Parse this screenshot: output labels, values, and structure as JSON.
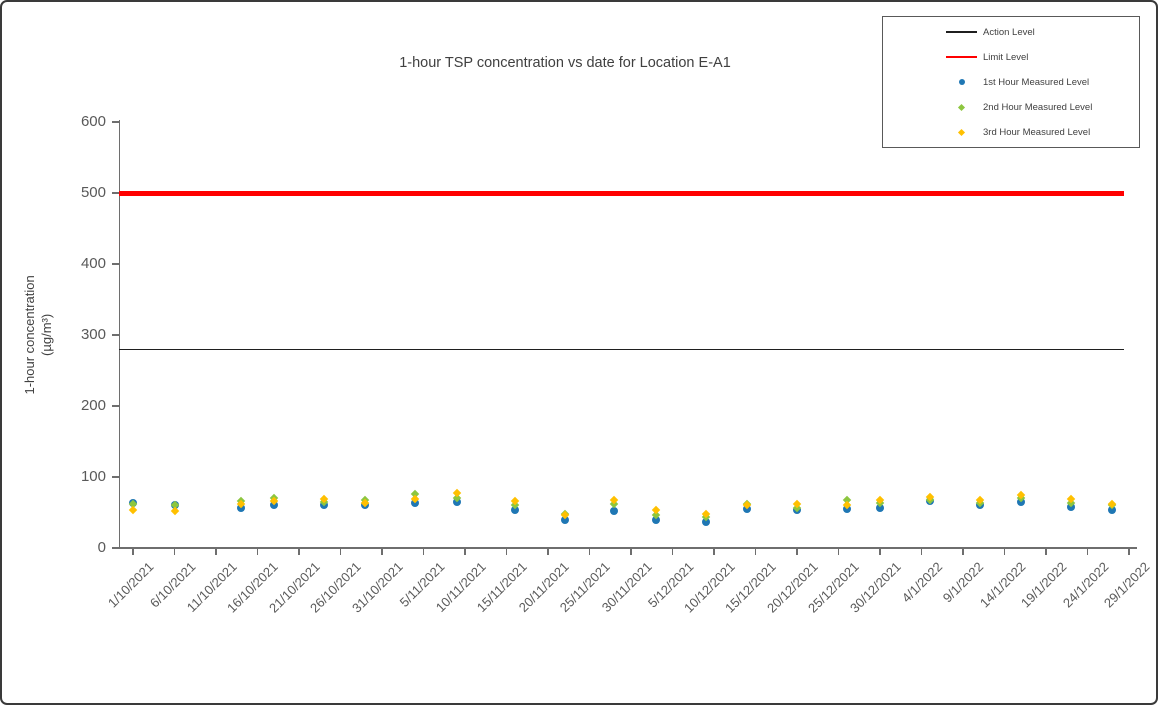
{
  "chart_data": {
    "type": "scatter",
    "title": "1-hour TSP concentration vs date for Location E-A1",
    "ylabel": "1-hour concentration (µg/m³)",
    "ylabel_line1": "1-hour concentration",
    "ylabel_line2": "(µg/m³)",
    "ylim": [
      0,
      600
    ],
    "grid": false,
    "legend_position": "top-right",
    "yticks": [
      0,
      100,
      200,
      300,
      400,
      500,
      600
    ],
    "x_tick_labels": [
      "1/10/2021",
      "6/10/2021",
      "11/10/2021",
      "16/10/2021",
      "21/10/2021",
      "26/10/2021",
      "31/10/2021",
      "5/11/2021",
      "10/11/2021",
      "15/11/2021",
      "20/11/2021",
      "25/11/2021",
      "30/11/2021",
      "5/12/2021",
      "10/12/2021",
      "15/12/2021",
      "20/12/2021",
      "25/12/2021",
      "30/12/2021",
      "4/1/2022",
      "9/1/2022",
      "14/1/2022",
      "19/1/2022",
      "24/1/2022",
      "29/1/2022"
    ],
    "x_tick_days": [
      0,
      5,
      10,
      15,
      20,
      25,
      30,
      35,
      40,
      45,
      50,
      55,
      60,
      65,
      70,
      75,
      80,
      85,
      90,
      95,
      100,
      105,
      110,
      115,
      120
    ],
    "reference_lines": [
      {
        "name": "Action Level",
        "slug": "action-level",
        "value": 280,
        "color": "#1f1f1f",
        "width": 1.2
      },
      {
        "name": "Limit Level",
        "slug": "limit-level",
        "value": 500,
        "color": "#ff0000",
        "width": 5
      }
    ],
    "series": [
      {
        "name": "1st Hour Measured Level",
        "slug": "1st-hour",
        "key": "h1",
        "marker": "circle",
        "color": "#1f77b4"
      },
      {
        "name": "2nd Hour Measured Level",
        "slug": "2nd-hour",
        "key": "h2",
        "marker": "diamond",
        "color": "#8dc63f"
      },
      {
        "name": "3rd Hour Measured Level",
        "slug": "3rd-hour",
        "key": "h3",
        "marker": "diamond",
        "color": "#ffc000"
      }
    ],
    "points": [
      {
        "date": "1/10/2021",
        "day": 0,
        "h1": 63,
        "h2": 62,
        "h3": 54
      },
      {
        "date": "6/10/2021",
        "day": 5,
        "h1": 61,
        "h2": 60,
        "h3": 52
      },
      {
        "date": "14/10/2021",
        "day": 13,
        "h1": 57,
        "h2": 66,
        "h3": 62
      },
      {
        "date": "18/10/2021",
        "day": 17,
        "h1": 61,
        "h2": 70,
        "h3": 66
      },
      {
        "date": "24/10/2021",
        "day": 23,
        "h1": 60,
        "h2": 65,
        "h3": 69
      },
      {
        "date": "29/10/2021",
        "day": 28,
        "h1": 61,
        "h2": 67,
        "h3": 63
      },
      {
        "date": "4/11/2021",
        "day": 34,
        "h1": 64,
        "h2": 76,
        "h3": 69
      },
      {
        "date": "9/11/2021",
        "day": 39,
        "h1": 65,
        "h2": 71,
        "h3": 78
      },
      {
        "date": "16/11/2021",
        "day": 46,
        "h1": 54,
        "h2": 61,
        "h3": 66
      },
      {
        "date": "22/11/2021",
        "day": 52,
        "h1": 39,
        "h2": 48,
        "h3": 47
      },
      {
        "date": "28/11/2021",
        "day": 58,
        "h1": 52,
        "h2": 62,
        "h3": 68
      },
      {
        "date": "3/12/2021",
        "day": 63,
        "h1": 39,
        "h2": 47,
        "h3": 53
      },
      {
        "date": "9/12/2021",
        "day": 69,
        "h1": 37,
        "h2": 44,
        "h3": 48
      },
      {
        "date": "14/12/2021",
        "day": 74,
        "h1": 55,
        "h2": 62,
        "h3": 60
      },
      {
        "date": "20/12/2021",
        "day": 80,
        "h1": 53,
        "h2": 57,
        "h3": 62
      },
      {
        "date": "26/12/2021",
        "day": 86,
        "h1": 55,
        "h2": 67,
        "h3": 61
      },
      {
        "date": "30/12/2021",
        "day": 90,
        "h1": 57,
        "h2": 63,
        "h3": 67
      },
      {
        "date": "5/1/2022",
        "day": 96,
        "h1": 66,
        "h2": 68,
        "h3": 72
      },
      {
        "date": "11/1/2022",
        "day": 102,
        "h1": 60,
        "h2": 63,
        "h3": 67
      },
      {
        "date": "16/1/2022",
        "day": 107,
        "h1": 65,
        "h2": 71,
        "h3": 74
      },
      {
        "date": "22/1/2022",
        "day": 113,
        "h1": 58,
        "h2": 63,
        "h3": 69
      },
      {
        "date": "27/1/2022",
        "day": 118,
        "h1": 53,
        "h2": 60,
        "h3": 62
      }
    ],
    "legend_items": [
      {
        "label": "Action Level",
        "slug": "action-level",
        "swatch": "line",
        "color": "#1f1f1f",
        "line_height": 1.2
      },
      {
        "label": "Limit Level",
        "slug": "limit-level",
        "swatch": "line",
        "color": "#ff0000",
        "line_height": 2
      },
      {
        "label": "1st Hour Measured Level",
        "slug": "1st-hour",
        "swatch": "circle",
        "color": "#1f77b4"
      },
      {
        "label": "2nd Hour Measured Level",
        "slug": "2nd-hour",
        "swatch": "diamond",
        "color": "#8dc63f"
      },
      {
        "label": "3rd Hour Measured Level",
        "slug": "3rd-hour",
        "swatch": "diamond",
        "color": "#ffc000"
      }
    ],
    "axis_color": "#6e6e6e"
  }
}
